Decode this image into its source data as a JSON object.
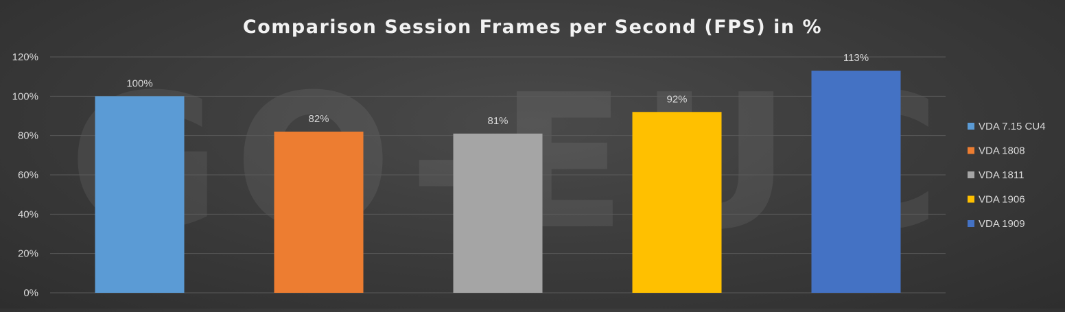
{
  "watermark": "GO-EUC",
  "chart_data": {
    "type": "bar",
    "title": "Comparison Session Frames per Second (FPS) in %",
    "xlabel": "",
    "ylabel": "",
    "ylim": [
      0,
      120
    ],
    "yticks": [
      0,
      20,
      40,
      60,
      80,
      100,
      120
    ],
    "ytick_labels": [
      "0%",
      "20%",
      "40%",
      "60%",
      "80%",
      "100%",
      "120%"
    ],
    "grid": true,
    "legend_position": "right",
    "series": [
      {
        "name": "VDA 7.15 CU4",
        "value": 100,
        "label": "100%",
        "color": "#5b9bd5"
      },
      {
        "name": "VDA 1808",
        "value": 82,
        "label": "82%",
        "color": "#ed7d31"
      },
      {
        "name": "VDA 1811",
        "value": 81,
        "label": "81%",
        "color": "#a5a5a5"
      },
      {
        "name": "VDA 1906",
        "value": 92,
        "label": "92%",
        "color": "#ffc000"
      },
      {
        "name": "VDA 1909",
        "value": 113,
        "label": "113%",
        "color": "#4472c4"
      }
    ]
  }
}
